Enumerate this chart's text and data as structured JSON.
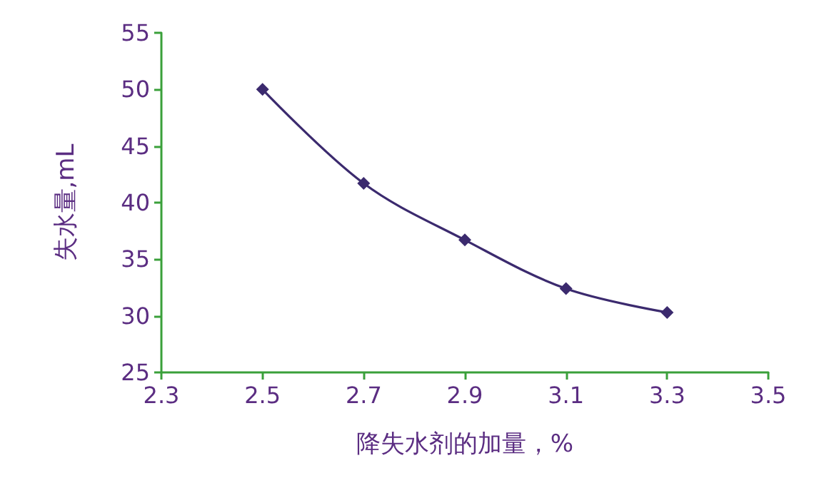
{
  "chart_data": {
    "type": "line",
    "xlabel": "降失水剂的加量，%",
    "ylabel": "失水量,mL",
    "x": [
      2.5,
      2.7,
      2.9,
      3.1,
      3.3
    ],
    "series": [
      {
        "color": "#3b2a6e",
        "values": [
          50,
          41.7,
          36.7,
          32.4,
          30.3
        ]
      }
    ],
    "xlim": [
      2.3,
      3.5
    ],
    "xticks": [
      2.3,
      2.5,
      2.7,
      2.9,
      3.1,
      3.3,
      3.5
    ],
    "ylim": [
      25,
      55
    ],
    "yticks": [
      25,
      30,
      35,
      40,
      45,
      50,
      55
    ],
    "grid": false,
    "marker": "diamond",
    "line_style": "solid"
  }
}
